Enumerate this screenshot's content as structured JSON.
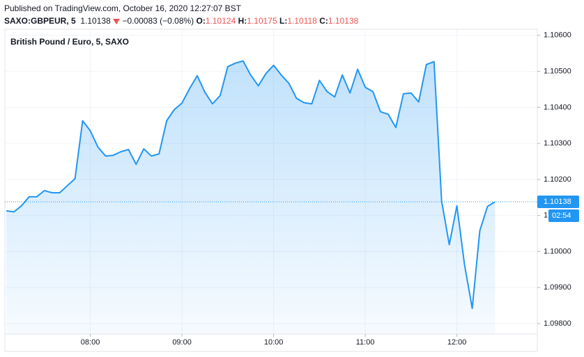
{
  "chart_data": {
    "type": "area",
    "published": "Published on TradingView.com, October 16, 2020 12:27:07 BST",
    "symbol": "SAXO:GBPEUR, 5",
    "last": "1.10138",
    "change": "−0.00083 (−0.08%)",
    "ohlc": [
      {
        "label": "O:",
        "value": "1.10124"
      },
      {
        "label": "H:",
        "value": "1.10175"
      },
      {
        "label": "L:",
        "value": "1.10118"
      },
      {
        "label": "C:",
        "value": "1.10138"
      }
    ],
    "title": "British Pound / Euro, 5, SAXO",
    "countdown": "02:54",
    "categories": [
      null,
      null,
      null,
      null,
      null,
      null,
      null,
      null,
      null,
      null,
      null,
      "08:00",
      null,
      null,
      null,
      null,
      null,
      null,
      null,
      null,
      null,
      null,
      null,
      "09:00",
      null,
      null,
      null,
      null,
      null,
      null,
      null,
      null,
      null,
      null,
      null,
      "10:00",
      null,
      null,
      null,
      null,
      null,
      null,
      null,
      null,
      null,
      null,
      null,
      "11:00",
      null,
      null,
      null,
      null,
      null,
      null,
      null,
      null,
      null,
      null,
      null,
      "12:00",
      null,
      null,
      null,
      null,
      null
    ],
    "series": [
      {
        "name": "GBPEUR",
        "color": "#2196f3",
        "values": [
          1.10113,
          1.1011,
          1.10127,
          1.10152,
          1.10152,
          1.10169,
          1.10163,
          1.10163,
          1.10183,
          1.10202,
          1.10363,
          1.10335,
          1.1029,
          1.10265,
          1.10267,
          1.10277,
          1.10283,
          1.10242,
          1.10285,
          1.10265,
          1.10271,
          1.10363,
          1.10394,
          1.10412,
          1.10452,
          1.10488,
          1.10442,
          1.1041,
          1.10433,
          1.10513,
          1.10523,
          1.10529,
          1.1049,
          1.1046,
          1.10494,
          1.10517,
          1.1049,
          1.10467,
          1.10425,
          1.10413,
          1.1041,
          1.10475,
          1.10444,
          1.10429,
          1.1049,
          1.1044,
          1.10506,
          1.10456,
          1.10444,
          1.10388,
          1.10381,
          1.10344,
          1.10438,
          1.1044,
          1.10415,
          1.10519,
          1.10527,
          1.1014,
          1.10019,
          1.10127,
          1.09963,
          1.09842,
          1.10058,
          1.10125,
          1.10138
        ]
      }
    ],
    "ylim": [
      1.09771,
      1.10617
    ],
    "yticks": [
      {
        "value": 1.098,
        "label": "1.09800"
      },
      {
        "value": 1.099,
        "label": "1.09900"
      },
      {
        "value": 1.1,
        "label": "1.10000"
      },
      {
        "value": 1.101,
        "label": "1.10100"
      },
      {
        "value": 1.102,
        "label": "1.10200"
      },
      {
        "value": 1.103,
        "label": "1.10300"
      },
      {
        "value": 1.104,
        "label": "1.10400"
      },
      {
        "value": 1.105,
        "label": "1.10500"
      },
      {
        "value": 1.106,
        "label": "1.10600"
      }
    ],
    "grid": true
  }
}
